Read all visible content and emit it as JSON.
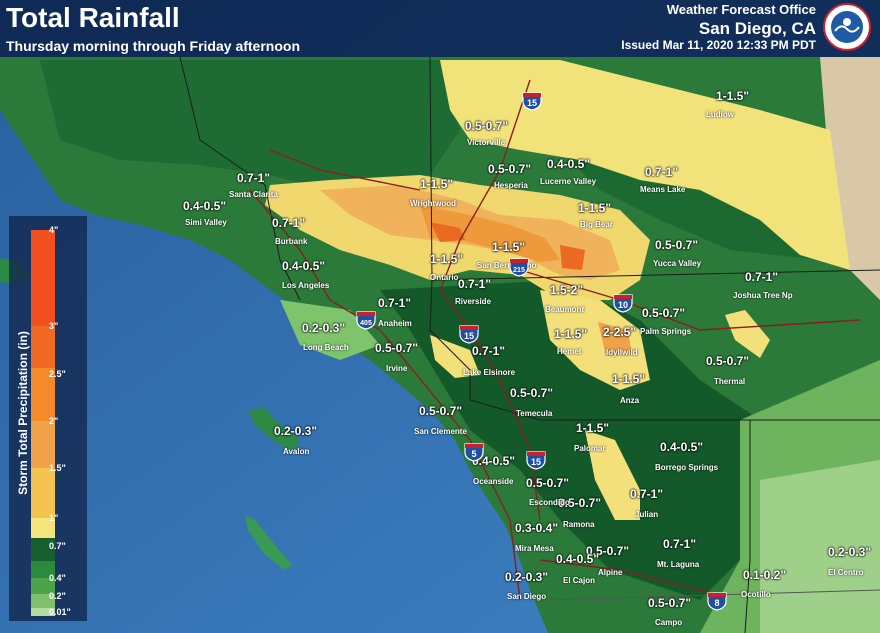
{
  "header": {
    "title": "Total Rainfall",
    "subtitle": "Thursday morning through Friday afternoon",
    "office": "Weather Forecast Office",
    "city": "San Diego, CA",
    "issued": "Issued Mar 11, 2020 12:33 PM PDT",
    "logo_text": "NATIONAL WEATHER SERVICE"
  },
  "legend": {
    "title": "Storm Total Precipitation (in)",
    "ticks": [
      "4\"",
      "3\"",
      "2.5\"",
      "2\"",
      "1.5\"",
      "1\"",
      "0.7\"",
      "0.4\"",
      "0.2\"",
      "0.01\""
    ],
    "colors": [
      "#f2501f",
      "#f06a24",
      "#f48a2a",
      "#f0a24a",
      "#f3c24f",
      "#f5e37c",
      "#16602f",
      "#2b8a3c",
      "#4ca349",
      "#7fc06a",
      "#b3dca0"
    ]
  },
  "rainfall_labels": [
    {
      "id": "ludlow",
      "text": "1-1.5\""
    },
    {
      "id": "victorville",
      "text": "0.5-0.7\""
    },
    {
      "id": "hesperia",
      "text": "0.5-0.7\""
    },
    {
      "id": "lucerne",
      "text": "0.4-0.5\""
    },
    {
      "id": "means",
      "text": "0.7-1\""
    },
    {
      "id": "santaclarita",
      "text": "0.7-1\""
    },
    {
      "id": "simi",
      "text": "0.4-0.5\""
    },
    {
      "id": "wrightwood",
      "text": "1-1.5\""
    },
    {
      "id": "bigbear",
      "text": "1-1.5\""
    },
    {
      "id": "burbank",
      "text": "0.7-1\""
    },
    {
      "id": "yucca",
      "text": "0.5-0.7\""
    },
    {
      "id": "sanbern",
      "text": "1-1.5\""
    },
    {
      "id": "ontario",
      "text": "1-1.5\""
    },
    {
      "id": "la",
      "text": "0.4-0.5\""
    },
    {
      "id": "joshua",
      "text": "0.7-1\""
    },
    {
      "id": "riverside",
      "text": "0.7-1\""
    },
    {
      "id": "beaumont",
      "text": "1.5-2\""
    },
    {
      "id": "anaheim",
      "text": "0.7-1\""
    },
    {
      "id": "palmsprings",
      "text": "0.5-0.7\""
    },
    {
      "id": "longbeach",
      "text": "0.2-0.3\""
    },
    {
      "id": "hemet",
      "text": "1-1.5\""
    },
    {
      "id": "idyllwild",
      "text": "2-2.5\""
    },
    {
      "id": "irvine",
      "text": "0.5-0.7\""
    },
    {
      "id": "elsinore",
      "text": "0.7-1\""
    },
    {
      "id": "thermal",
      "text": "0.5-0.7\""
    },
    {
      "id": "anza",
      "text": "1-1.5\""
    },
    {
      "id": "temecula",
      "text": "0.5-0.7\""
    },
    {
      "id": "sanclemente",
      "text": "0.5-0.7\""
    },
    {
      "id": "avalon",
      "text": "0.2-0.3\""
    },
    {
      "id": "palomar",
      "text": "1-1.5\""
    },
    {
      "id": "borrego",
      "text": "0.4-0.5\""
    },
    {
      "id": "oceanside",
      "text": "0.4-0.5\""
    },
    {
      "id": "escondido",
      "text": "0.5-0.7\""
    },
    {
      "id": "ramona",
      "text": "0.5-0.7\""
    },
    {
      "id": "julian",
      "text": "0.7-1\""
    },
    {
      "id": "miramesa",
      "text": "0.3-0.4\""
    },
    {
      "id": "alpine",
      "text": "0.5-0.7\""
    },
    {
      "id": "elcajon",
      "text": "0.4-0.5\""
    },
    {
      "id": "laguna",
      "text": "0.7-1\""
    },
    {
      "id": "sandiego",
      "text": "0.2-0.3\""
    },
    {
      "id": "ocotillo",
      "text": "0.1-0.2\""
    },
    {
      "id": "elcentro",
      "text": "0.2-0.3\""
    },
    {
      "id": "campo",
      "text": "0.5-0.7\""
    }
  ],
  "cities": [
    {
      "id": "ludlow",
      "name": "Ludlow"
    },
    {
      "id": "victorville",
      "name": "Victorville"
    },
    {
      "id": "hesperia",
      "name": "Hesperia"
    },
    {
      "id": "lucerne",
      "name": "Lucerne Valley"
    },
    {
      "id": "means",
      "name": "Means Lake"
    },
    {
      "id": "santaclarita",
      "name": "Santa Clarita"
    },
    {
      "id": "simi",
      "name": "Simi Valley"
    },
    {
      "id": "wrightwood",
      "name": "Wrightwood"
    },
    {
      "id": "bigbear",
      "name": "Big Bear"
    },
    {
      "id": "burbank",
      "name": "Burbank"
    },
    {
      "id": "yucca",
      "name": "Yucca Valley"
    },
    {
      "id": "sanbern",
      "name": "San Bernardino"
    },
    {
      "id": "ontario",
      "name": "Ontario"
    },
    {
      "id": "la",
      "name": "Los Angeles"
    },
    {
      "id": "joshua",
      "name": "Joshua Tree Np"
    },
    {
      "id": "riverside",
      "name": "Riverside"
    },
    {
      "id": "beaumont",
      "name": "Beaumont"
    },
    {
      "id": "anaheim",
      "name": "Anaheim"
    },
    {
      "id": "palmsprings",
      "name": "Palm Springs"
    },
    {
      "id": "longbeach",
      "name": "Long Beach"
    },
    {
      "id": "hemet",
      "name": "Hemet"
    },
    {
      "id": "idyllwild",
      "name": "Idyllwild"
    },
    {
      "id": "irvine",
      "name": "Irvine"
    },
    {
      "id": "elsinore",
      "name": "Lake Elsinore"
    },
    {
      "id": "thermal",
      "name": "Thermal"
    },
    {
      "id": "anza",
      "name": "Anza"
    },
    {
      "id": "temecula",
      "name": "Temecula"
    },
    {
      "id": "sanclemente",
      "name": "San Clemente"
    },
    {
      "id": "avalon",
      "name": "Avalon"
    },
    {
      "id": "palomar",
      "name": "Palomar"
    },
    {
      "id": "borrego",
      "name": "Borrego Springs"
    },
    {
      "id": "oceanside",
      "name": "Oceanside"
    },
    {
      "id": "escondido",
      "name": "Escondido"
    },
    {
      "id": "ramona",
      "name": "Ramona"
    },
    {
      "id": "julian",
      "name": "Julian"
    },
    {
      "id": "miramesa",
      "name": "Mira Mesa"
    },
    {
      "id": "alpine",
      "name": "Alpine"
    },
    {
      "id": "elcajon",
      "name": "El Cajon"
    },
    {
      "id": "laguna",
      "name": "Mt. Laguna"
    },
    {
      "id": "sandiego",
      "name": "San Diego"
    },
    {
      "id": "ocotillo",
      "name": "Ocotillo"
    },
    {
      "id": "elcentro",
      "name": "El Centro"
    },
    {
      "id": "campo",
      "name": "Campo"
    }
  ],
  "highways": [
    "15",
    "215",
    "10",
    "405",
    "15",
    "5",
    "15",
    "8"
  ]
}
